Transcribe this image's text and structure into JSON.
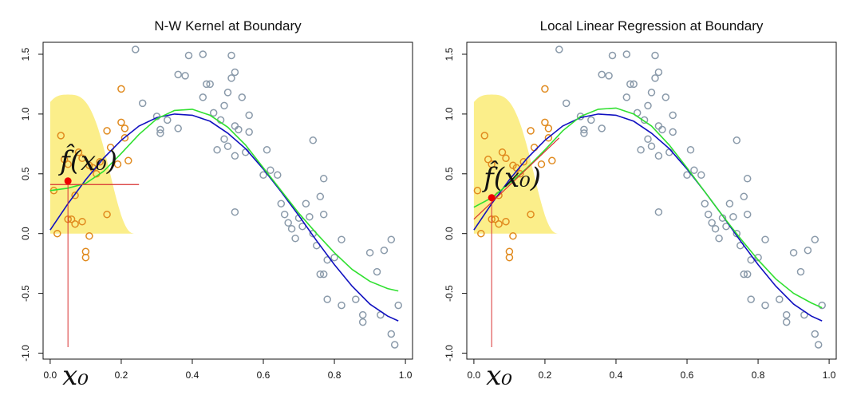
{
  "chart_data": [
    {
      "type": "scatter",
      "title": "N-W Kernel at Boundary",
      "xlabel": "",
      "ylabel": "",
      "xlim": [
        -0.02,
        1.02
      ],
      "ylim": [
        -1.05,
        1.6
      ],
      "xticks": [
        "0.0",
        "0.2",
        "0.4",
        "0.6",
        "0.8",
        "1.0"
      ],
      "yticks": [
        "-1.0",
        "-0.5",
        "0.0",
        "0.5",
        "1.0",
        "1.5"
      ],
      "target_point": {
        "x": 0.05,
        "y": 0.44,
        "label_fx": "f̂(x₀)",
        "label_x0": "x₀"
      },
      "kernel_window": {
        "center": 0.05,
        "radius": 0.19,
        "peak": 1.25
      },
      "local_fit_line": {
        "x": [
          0.0,
          0.25
        ],
        "y": [
          0.41,
          0.41
        ]
      },
      "points": [
        [
          0.01,
          0.36
        ],
        [
          0.02,
          0.0
        ],
        [
          0.03,
          0.82
        ],
        [
          0.04,
          0.62
        ],
        [
          0.05,
          0.12
        ],
        [
          0.05,
          0.58
        ],
        [
          0.06,
          0.12
        ],
        [
          0.07,
          0.32
        ],
        [
          0.07,
          0.08
        ],
        [
          0.08,
          0.68
        ],
        [
          0.09,
          0.1
        ],
        [
          0.09,
          0.63
        ],
        [
          0.1,
          -0.2
        ],
        [
          0.1,
          -0.15
        ],
        [
          0.11,
          0.57
        ],
        [
          0.11,
          -0.02
        ],
        [
          0.12,
          0.55
        ],
        [
          0.13,
          0.5
        ],
        [
          0.14,
          0.6
        ],
        [
          0.16,
          0.16
        ],
        [
          0.16,
          0.86
        ],
        [
          0.17,
          0.72
        ],
        [
          0.19,
          0.58
        ],
        [
          0.2,
          1.21
        ],
        [
          0.2,
          0.93
        ],
        [
          0.21,
          0.8
        ],
        [
          0.21,
          0.88
        ],
        [
          0.22,
          0.61
        ],
        [
          0.24,
          1.54
        ],
        [
          0.26,
          1.09
        ],
        [
          0.3,
          0.98
        ],
        [
          0.31,
          0.84
        ],
        [
          0.31,
          0.87
        ],
        [
          0.33,
          0.95
        ],
        [
          0.36,
          0.88
        ],
        [
          0.36,
          1.33
        ],
        [
          0.38,
          1.32
        ],
        [
          0.39,
          1.49
        ],
        [
          0.43,
          1.5
        ],
        [
          0.43,
          1.14
        ],
        [
          0.44,
          1.25
        ],
        [
          0.45,
          1.25
        ],
        [
          0.46,
          1.01
        ],
        [
          0.47,
          0.7
        ],
        [
          0.48,
          0.95
        ],
        [
          0.49,
          1.07
        ],
        [
          0.49,
          0.79
        ],
        [
          0.5,
          0.73
        ],
        [
          0.5,
          1.18
        ],
        [
          0.51,
          1.3
        ],
        [
          0.51,
          1.49
        ],
        [
          0.52,
          1.35
        ],
        [
          0.52,
          0.9
        ],
        [
          0.52,
          0.65
        ],
        [
          0.52,
          0.18
        ],
        [
          0.53,
          0.87
        ],
        [
          0.54,
          1.14
        ],
        [
          0.55,
          0.68
        ],
        [
          0.56,
          0.85
        ],
        [
          0.56,
          0.99
        ],
        [
          0.6,
          0.49
        ],
        [
          0.61,
          0.7
        ],
        [
          0.62,
          0.53
        ],
        [
          0.64,
          0.49
        ],
        [
          0.65,
          0.25
        ],
        [
          0.66,
          0.16
        ],
        [
          0.67,
          0.09
        ],
        [
          0.68,
          0.04
        ],
        [
          0.69,
          -0.04
        ],
        [
          0.7,
          0.13
        ],
        [
          0.71,
          0.06
        ],
        [
          0.72,
          0.25
        ],
        [
          0.73,
          0.14
        ],
        [
          0.74,
          0.78
        ],
        [
          0.74,
          0.0
        ],
        [
          0.75,
          -0.1
        ],
        [
          0.76,
          0.31
        ],
        [
          0.76,
          -0.34
        ],
        [
          0.77,
          0.46
        ],
        [
          0.77,
          0.16
        ],
        [
          0.77,
          -0.34
        ],
        [
          0.78,
          -0.22
        ],
        [
          0.78,
          -0.55
        ],
        [
          0.8,
          -0.2
        ],
        [
          0.82,
          -0.6
        ],
        [
          0.82,
          -0.05
        ],
        [
          0.86,
          -0.55
        ],
        [
          0.88,
          -0.68
        ],
        [
          0.88,
          -0.74
        ],
        [
          0.9,
          -0.16
        ],
        [
          0.92,
          -0.32
        ],
        [
          0.93,
          -0.68
        ],
        [
          0.94,
          -0.14
        ],
        [
          0.96,
          -0.05
        ],
        [
          0.96,
          -0.84
        ],
        [
          0.97,
          -0.93
        ],
        [
          0.98,
          -0.6
        ]
      ],
      "series": [
        {
          "color": "#1010c0",
          "x": [
            0.0,
            0.05,
            0.1,
            0.15,
            0.2,
            0.25,
            0.3,
            0.35,
            0.4,
            0.45,
            0.5,
            0.55,
            0.6,
            0.65,
            0.7,
            0.75,
            0.8,
            0.85,
            0.9,
            0.95,
            0.98
          ],
          "y": [
            0.03,
            0.25,
            0.45,
            0.63,
            0.78,
            0.9,
            0.97,
            1.0,
            0.99,
            0.94,
            0.84,
            0.71,
            0.54,
            0.35,
            0.15,
            -0.06,
            -0.26,
            -0.44,
            -0.59,
            -0.69,
            -0.73
          ]
        },
        {
          "color": "#30e030",
          "x": [
            0.0,
            0.05,
            0.1,
            0.15,
            0.2,
            0.25,
            0.3,
            0.35,
            0.4,
            0.45,
            0.5,
            0.55,
            0.6,
            0.65,
            0.7,
            0.75,
            0.8,
            0.85,
            0.9,
            0.95,
            0.98
          ],
          "y": [
            0.36,
            0.38,
            0.42,
            0.52,
            0.67,
            0.83,
            0.96,
            1.03,
            1.04,
            0.99,
            0.89,
            0.74,
            0.55,
            0.36,
            0.17,
            0.0,
            -0.16,
            -0.3,
            -0.4,
            -0.46,
            -0.48
          ]
        }
      ]
    },
    {
      "type": "scatter",
      "title": "Local Linear Regression at Boundary",
      "xlabel": "",
      "ylabel": "",
      "xlim": [
        -0.02,
        1.02
      ],
      "ylim": [
        -1.05,
        1.6
      ],
      "xticks": [
        "0.0",
        "0.2",
        "0.4",
        "0.6",
        "0.8",
        "1.0"
      ],
      "yticks": [
        "-1.0",
        "-0.5",
        "0.0",
        "0.5",
        "1.0",
        "1.5"
      ],
      "target_point": {
        "x": 0.05,
        "y": 0.3,
        "label_fx": "f̂(x₀)",
        "label_x0": "x₀"
      },
      "kernel_window": {
        "center": 0.05,
        "radius": 0.19,
        "peak": 1.25
      },
      "local_fit_line": {
        "x": [
          0.0,
          0.24
        ],
        "y": [
          0.12,
          0.8
        ]
      },
      "points": [
        [
          0.01,
          0.36
        ],
        [
          0.02,
          0.0
        ],
        [
          0.03,
          0.82
        ],
        [
          0.04,
          0.62
        ],
        [
          0.05,
          0.12
        ],
        [
          0.05,
          0.58
        ],
        [
          0.06,
          0.12
        ],
        [
          0.07,
          0.32
        ],
        [
          0.07,
          0.08
        ],
        [
          0.08,
          0.68
        ],
        [
          0.09,
          0.1
        ],
        [
          0.09,
          0.63
        ],
        [
          0.1,
          -0.2
        ],
        [
          0.1,
          -0.15
        ],
        [
          0.11,
          0.57
        ],
        [
          0.11,
          -0.02
        ],
        [
          0.12,
          0.55
        ],
        [
          0.13,
          0.5
        ],
        [
          0.14,
          0.6
        ],
        [
          0.16,
          0.16
        ],
        [
          0.16,
          0.86
        ],
        [
          0.17,
          0.72
        ],
        [
          0.19,
          0.58
        ],
        [
          0.2,
          1.21
        ],
        [
          0.2,
          0.93
        ],
        [
          0.21,
          0.8
        ],
        [
          0.21,
          0.88
        ],
        [
          0.22,
          0.61
        ],
        [
          0.24,
          1.54
        ],
        [
          0.26,
          1.09
        ],
        [
          0.3,
          0.98
        ],
        [
          0.31,
          0.84
        ],
        [
          0.31,
          0.87
        ],
        [
          0.33,
          0.95
        ],
        [
          0.36,
          0.88
        ],
        [
          0.36,
          1.33
        ],
        [
          0.38,
          1.32
        ],
        [
          0.39,
          1.49
        ],
        [
          0.43,
          1.5
        ],
        [
          0.43,
          1.14
        ],
        [
          0.44,
          1.25
        ],
        [
          0.45,
          1.25
        ],
        [
          0.46,
          1.01
        ],
        [
          0.47,
          0.7
        ],
        [
          0.48,
          0.95
        ],
        [
          0.49,
          1.07
        ],
        [
          0.49,
          0.79
        ],
        [
          0.5,
          0.73
        ],
        [
          0.5,
          1.18
        ],
        [
          0.51,
          1.3
        ],
        [
          0.51,
          1.49
        ],
        [
          0.52,
          1.35
        ],
        [
          0.52,
          0.9
        ],
        [
          0.52,
          0.65
        ],
        [
          0.52,
          0.18
        ],
        [
          0.53,
          0.87
        ],
        [
          0.54,
          1.14
        ],
        [
          0.55,
          0.68
        ],
        [
          0.56,
          0.85
        ],
        [
          0.56,
          0.99
        ],
        [
          0.6,
          0.49
        ],
        [
          0.61,
          0.7
        ],
        [
          0.62,
          0.53
        ],
        [
          0.64,
          0.49
        ],
        [
          0.65,
          0.25
        ],
        [
          0.66,
          0.16
        ],
        [
          0.67,
          0.09
        ],
        [
          0.68,
          0.04
        ],
        [
          0.69,
          -0.04
        ],
        [
          0.7,
          0.13
        ],
        [
          0.71,
          0.06
        ],
        [
          0.72,
          0.25
        ],
        [
          0.73,
          0.14
        ],
        [
          0.74,
          0.78
        ],
        [
          0.74,
          0.0
        ],
        [
          0.75,
          -0.1
        ],
        [
          0.76,
          0.31
        ],
        [
          0.76,
          -0.34
        ],
        [
          0.77,
          0.46
        ],
        [
          0.77,
          0.16
        ],
        [
          0.77,
          -0.34
        ],
        [
          0.78,
          -0.22
        ],
        [
          0.78,
          -0.55
        ],
        [
          0.8,
          -0.2
        ],
        [
          0.82,
          -0.6
        ],
        [
          0.82,
          -0.05
        ],
        [
          0.86,
          -0.55
        ],
        [
          0.88,
          -0.68
        ],
        [
          0.88,
          -0.74
        ],
        [
          0.9,
          -0.16
        ],
        [
          0.92,
          -0.32
        ],
        [
          0.93,
          -0.68
        ],
        [
          0.94,
          -0.14
        ],
        [
          0.96,
          -0.05
        ],
        [
          0.96,
          -0.84
        ],
        [
          0.97,
          -0.93
        ],
        [
          0.98,
          -0.6
        ]
      ],
      "series": [
        {
          "color": "#1010c0",
          "x": [
            0.0,
            0.05,
            0.1,
            0.15,
            0.2,
            0.25,
            0.3,
            0.35,
            0.4,
            0.45,
            0.5,
            0.55,
            0.6,
            0.65,
            0.7,
            0.75,
            0.8,
            0.85,
            0.9,
            0.95,
            0.98
          ],
          "y": [
            0.03,
            0.25,
            0.45,
            0.63,
            0.78,
            0.9,
            0.97,
            1.0,
            0.99,
            0.94,
            0.84,
            0.71,
            0.54,
            0.35,
            0.15,
            -0.06,
            -0.26,
            -0.44,
            -0.59,
            -0.69,
            -0.73
          ]
        },
        {
          "color": "#30e030",
          "x": [
            0.0,
            0.05,
            0.1,
            0.15,
            0.2,
            0.25,
            0.3,
            0.35,
            0.4,
            0.45,
            0.5,
            0.55,
            0.6,
            0.65,
            0.7,
            0.75,
            0.8,
            0.85,
            0.9,
            0.95,
            0.98
          ],
          "y": [
            0.22,
            0.3,
            0.42,
            0.55,
            0.7,
            0.86,
            0.98,
            1.04,
            1.05,
            1.0,
            0.9,
            0.74,
            0.55,
            0.35,
            0.15,
            -0.04,
            -0.22,
            -0.38,
            -0.5,
            -0.58,
            -0.62
          ]
        }
      ]
    }
  ],
  "colors": {
    "kernel_fill": "#fbee8a",
    "near_point": "#e08a1e",
    "far_point": "#8a9aaa",
    "target_line": "#d83030",
    "target_dot": "#ee0000"
  }
}
